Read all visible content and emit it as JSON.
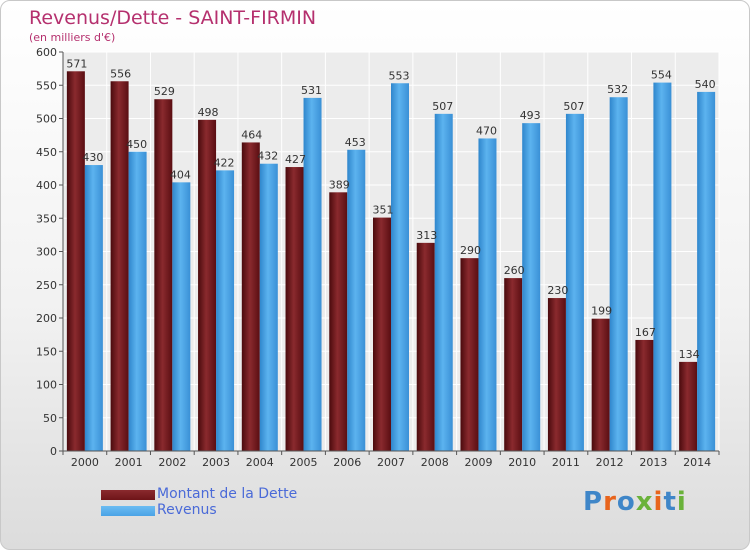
{
  "header": {
    "title": "Revenus/Dette - SAINT-FIRMIN",
    "subtitle": "(en milliers d'€)"
  },
  "legend": {
    "items": [
      {
        "label": "Montant de la Dette",
        "color": "#6e1418"
      },
      {
        "label": "Revenus",
        "color": "#4aa3e6"
      }
    ]
  },
  "logo": {
    "text": "Proxiti"
  },
  "colors": {
    "dette": "#6e1418",
    "revenus": "#4aa3e6",
    "title": "#b5306e",
    "legend_text": "#4a6ad8"
  },
  "chart_data": {
    "type": "bar",
    "title": "Revenus/Dette - SAINT-FIRMIN",
    "subtitle": "(en milliers d'€)",
    "categories": [
      "2000",
      "2001",
      "2002",
      "2003",
      "2004",
      "2005",
      "2006",
      "2007",
      "2008",
      "2009",
      "2010",
      "2011",
      "2012",
      "2013",
      "2014"
    ],
    "series": [
      {
        "name": "Montant de la Dette",
        "values": [
          571,
          556,
          529,
          498,
          464,
          427,
          389,
          351,
          313,
          290,
          260,
          230,
          199,
          167,
          134
        ]
      },
      {
        "name": "Revenus",
        "values": [
          430,
          450,
          404,
          422,
          432,
          531,
          453,
          553,
          507,
          470,
          493,
          507,
          532,
          554,
          540
        ]
      }
    ],
    "ylim": [
      0,
      600
    ],
    "yticks": [
      0,
      50,
      100,
      150,
      200,
      250,
      300,
      350,
      400,
      450,
      500,
      550,
      600
    ],
    "grid": true,
    "legend_position": "bottom-left"
  }
}
